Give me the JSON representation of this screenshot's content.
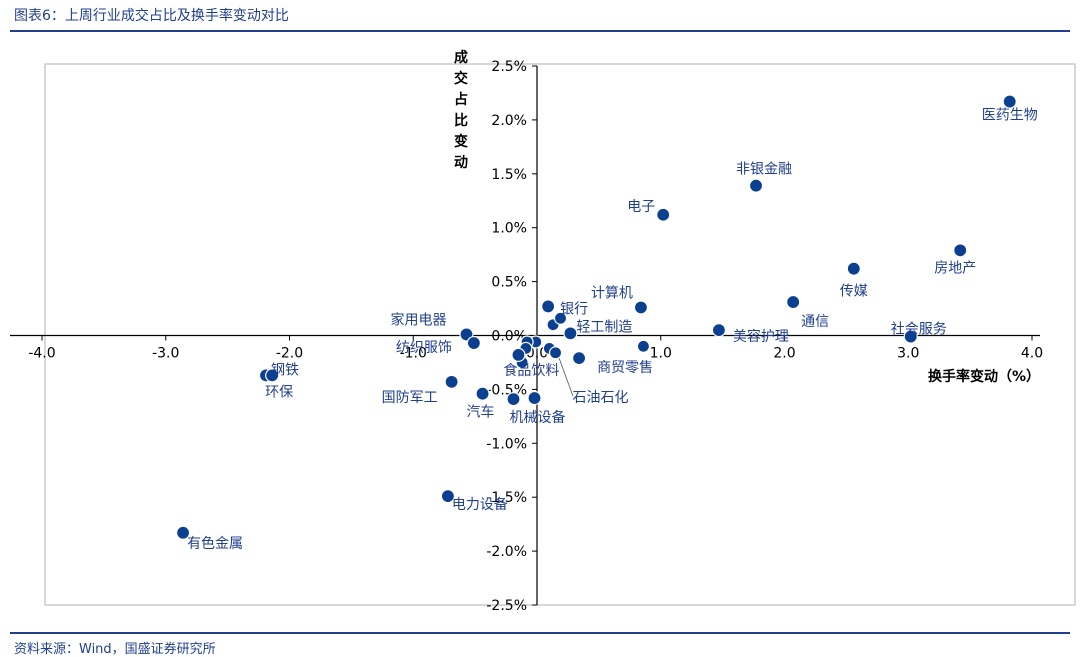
{
  "title": "图表6：上周行业成交占比及换手率变动对比",
  "source": "资料来源：Wind，国盛证券研究所",
  "chart_data": {
    "type": "scatter",
    "xlabel": "换手率变动（%）",
    "ylabel": "成交占比变动",
    "xlim": [
      -4.0,
      4.0
    ],
    "ylim": [
      -2.5,
      2.5
    ],
    "x_ticks": [
      "-4.0",
      "-3.0",
      "-2.0",
      "-1.0",
      "0.0",
      "1.0",
      "2.0",
      "3.0",
      "4.0"
    ],
    "y_ticks": [
      "2.5%",
      "2.0%",
      "1.5%",
      "1.0%",
      "0.5%",
      "0.0%",
      "-0.5%",
      "-1.0%",
      "-1.5%",
      "-2.0%",
      "-2.5%"
    ],
    "grid": false,
    "colors": {
      "point": "#0b3f8f",
      "label": "#1f3f8f",
      "frame": "#b0b0b0"
    },
    "points": [
      {
        "name": "医药生物",
        "x": 3.82,
        "y": 2.17
      },
      {
        "name": "非银金融",
        "x": 1.77,
        "y": 1.39
      },
      {
        "name": "电子",
        "x": 1.02,
        "y": 1.12
      },
      {
        "name": "房地产",
        "x": 3.42,
        "y": 0.79
      },
      {
        "name": "传媒",
        "x": 2.56,
        "y": 0.62
      },
      {
        "name": "通信",
        "x": 2.07,
        "y": 0.31
      },
      {
        "name": "计算机",
        "x": 0.84,
        "y": 0.26
      },
      {
        "name": "银行",
        "x": 0.09,
        "y": 0.27
      },
      {
        "name": "轻工制造",
        "x": 0.27,
        "y": 0.02
      },
      {
        "name": "美容护理",
        "x": 1.47,
        "y": 0.05
      },
      {
        "name": "社会服务",
        "x": 3.02,
        "y": -0.01
      },
      {
        "name": "家用电器",
        "x": -0.57,
        "y": 0.01
      },
      {
        "name": "纺织服饰",
        "x": -0.51,
        "y": -0.07
      },
      {
        "name": "食品饮料",
        "x": -0.15,
        "y": -0.18
      },
      {
        "name": "商贸零售",
        "x": 0.34,
        "y": -0.21
      },
      {
        "name": "钢铁",
        "x": -2.19,
        "y": -0.37
      },
      {
        "name": "环保",
        "x": -2.14,
        "y": -0.37
      },
      {
        "name": "国防军工",
        "x": -0.69,
        "y": -0.43
      },
      {
        "name": "石油石化",
        "x": -0.02,
        "y": -0.58
      },
      {
        "name": "汽车",
        "x": -0.44,
        "y": -0.54
      },
      {
        "name": "机械设备",
        "x": -0.19,
        "y": -0.59
      },
      {
        "name": "电力设备",
        "x": -0.72,
        "y": -1.49
      },
      {
        "name": "有色金属",
        "x": -2.86,
        "y": -1.83
      }
    ],
    "unlabeled_points": [
      {
        "x": 0.13,
        "y": 0.1
      },
      {
        "x": 0.19,
        "y": 0.16
      },
      {
        "x": -0.01,
        "y": -0.06
      },
      {
        "x": -0.08,
        "y": -0.06
      },
      {
        "x": -0.09,
        "y": -0.12
      },
      {
        "x": 0.1,
        "y": -0.12
      },
      {
        "x": 0.15,
        "y": -0.16
      },
      {
        "x": 0.86,
        "y": -0.1
      },
      {
        "x": -0.12,
        "y": -0.25
      }
    ]
  }
}
